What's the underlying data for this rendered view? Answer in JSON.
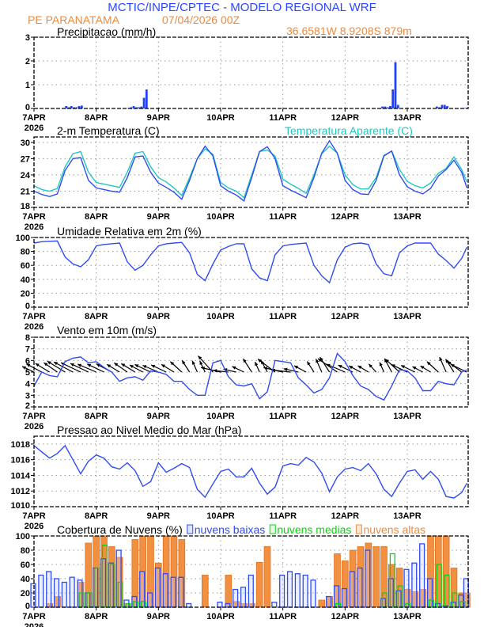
{
  "header": {
    "title": "MCTIC/INPE/CPTEC - MODELO REGIONAL WRF",
    "station": "PE PARANATAMA",
    "datetime": "07/04/2026 00Z",
    "coords": "36.6581W 8.9208S 879m"
  },
  "x_axis": {
    "labels": [
      "7APR",
      "8APR",
      "9APR",
      "10APR",
      "11APR",
      "12APR",
      "13APR"
    ],
    "year": "2026",
    "range": [
      "2026-04-07T00",
      "2026-04-13T23"
    ]
  },
  "times": [
    "2026-04-07T00",
    "2026-04-07T03",
    "2026-04-07T06",
    "2026-04-07T09",
    "2026-04-07T12",
    "2026-04-07T15",
    "2026-04-07T18",
    "2026-04-07T21",
    "2026-04-08T00",
    "2026-04-08T03",
    "2026-04-08T06",
    "2026-04-08T09",
    "2026-04-08T12",
    "2026-04-08T15",
    "2026-04-08T18",
    "2026-04-08T21",
    "2026-04-09T00",
    "2026-04-09T03",
    "2026-04-09T06",
    "2026-04-09T09",
    "2026-04-09T12",
    "2026-04-09T15",
    "2026-04-09T18",
    "2026-04-09T21",
    "2026-04-10T00",
    "2026-04-10T03",
    "2026-04-10T06",
    "2026-04-10T09",
    "2026-04-10T12",
    "2026-04-10T15",
    "2026-04-10T18",
    "2026-04-10T21",
    "2026-04-11T00",
    "2026-04-11T03",
    "2026-04-11T06",
    "2026-04-11T09",
    "2026-04-11T12",
    "2026-04-11T15",
    "2026-04-11T18",
    "2026-04-11T21",
    "2026-04-12T00",
    "2026-04-12T03",
    "2026-04-12T06",
    "2026-04-12T09",
    "2026-04-12T12",
    "2026-04-12T15",
    "2026-04-12T18",
    "2026-04-12T21",
    "2026-04-13T00",
    "2026-04-13T03",
    "2026-04-13T06",
    "2026-04-13T09",
    "2026-04-13T12",
    "2026-04-13T15",
    "2026-04-13T18",
    "2026-04-13T21",
    "2026-04-13T23"
  ],
  "chart_data": [
    {
      "type": "bar",
      "title": "Precipitacao (mm/h)",
      "ylim": [
        0,
        3
      ],
      "yticks": [
        0,
        1,
        2,
        3
      ],
      "grid": true,
      "series": [
        {
          "color": "#2040ff",
          "points": [
            {
              "t": "2026-04-07T12",
              "v": 0.1
            },
            {
              "t": "2026-04-07T13",
              "v": 0.05
            },
            {
              "t": "2026-04-07T14",
              "v": 0.1
            },
            {
              "t": "2026-04-07T15",
              "v": 0.05
            },
            {
              "t": "2026-04-07T16",
              "v": 0.05
            },
            {
              "t": "2026-04-07T17",
              "v": 0.1
            },
            {
              "t": "2026-04-07T18",
              "v": 0.12
            },
            {
              "t": "2026-04-08T12",
              "v": 0.02
            },
            {
              "t": "2026-04-08T13",
              "v": 0.05
            },
            {
              "t": "2026-04-08T14",
              "v": 0.1
            },
            {
              "t": "2026-04-08T15",
              "v": 0.05
            },
            {
              "t": "2026-04-08T16",
              "v": 0.05
            },
            {
              "t": "2026-04-08T17",
              "v": 0.08
            },
            {
              "t": "2026-04-08T18",
              "v": 0.45
            },
            {
              "t": "2026-04-08T19",
              "v": 0.8
            },
            {
              "t": "2026-04-12T14",
              "v": 0.08
            },
            {
              "t": "2026-04-12T15",
              "v": 0.08
            },
            {
              "t": "2026-04-12T16",
              "v": 0.05
            },
            {
              "t": "2026-04-12T17",
              "v": 0.1
            },
            {
              "t": "2026-04-12T18",
              "v": 0.8
            },
            {
              "t": "2026-04-12T19",
              "v": 1.95
            },
            {
              "t": "2026-04-12T20",
              "v": 0.15
            },
            {
              "t": "2026-04-13T11",
              "v": 0.08
            },
            {
              "t": "2026-04-13T12",
              "v": 0.05
            },
            {
              "t": "2026-04-13T13",
              "v": 0.15
            },
            {
              "t": "2026-04-13T14",
              "v": 0.15
            },
            {
              "t": "2026-04-13T15",
              "v": 0.1
            },
            {
              "t": "2026-04-13T22",
              "v": 0.02
            }
          ]
        }
      ]
    },
    {
      "type": "line",
      "title": "2-m Temperatura (C)",
      "ylim": [
        18,
        31
      ],
      "yticks": [
        18,
        21,
        24,
        27,
        30
      ],
      "grid": true,
      "series": [
        {
          "name": "Temperatura Aparente (C)",
          "color": "#20c8c0",
          "values": [
            22.0,
            21.3,
            21.0,
            21.5,
            25.5,
            27.9,
            28.3,
            24.5,
            22.6,
            22.3,
            22.0,
            21.7,
            24.5,
            28.0,
            28.3,
            25.5,
            23.5,
            22.7,
            21.6,
            20.2,
            23.5,
            27.0,
            28.8,
            27.8,
            22.6,
            21.6,
            21.0,
            19.8,
            24.0,
            28.3,
            28.6,
            27.5,
            23.2,
            22.3,
            21.5,
            20.6,
            24.0,
            27.9,
            29.3,
            28.0,
            24.0,
            22.2,
            21.4,
            21.4,
            23.5,
            27.6,
            28.4,
            25.0,
            22.8,
            22.0,
            21.6,
            22.5,
            24.3,
            25.2,
            27.3,
            25.0,
            22.7
          ]
        },
        {
          "color": "#2f4cf0",
          "values": [
            21.0,
            20.4,
            20.0,
            20.5,
            24.8,
            27.0,
            27.2,
            23.0,
            21.6,
            21.3,
            21.0,
            20.8,
            23.5,
            27.3,
            27.5,
            24.5,
            22.5,
            21.7,
            20.8,
            19.5,
            23.0,
            27.0,
            29.3,
            27.5,
            22.0,
            21.0,
            20.3,
            19.2,
            23.5,
            28.3,
            29.2,
            27.0,
            22.0,
            21.2,
            20.5,
            19.8,
            23.5,
            28.0,
            30.3,
            28.0,
            23.0,
            21.3,
            20.5,
            20.4,
            23.0,
            27.5,
            28.4,
            24.0,
            21.8,
            21.0,
            20.5,
            21.5,
            23.8,
            25.0,
            26.7,
            24.5,
            21.6
          ]
        }
      ]
    },
    {
      "type": "line",
      "title": "Umidade Relativa em 2m (%)",
      "ylim": [
        0,
        100
      ],
      "yticks": [
        0,
        20,
        40,
        60,
        80,
        100
      ],
      "grid": true,
      "series": [
        {
          "color": "#2f4cf0",
          "values": [
            92,
            94,
            94.5,
            95,
            72,
            62,
            58,
            68,
            88,
            90,
            91,
            92,
            65,
            53,
            60,
            75,
            88,
            91,
            92,
            93,
            78,
            47,
            38,
            62,
            82,
            87,
            91,
            91,
            55,
            42,
            38,
            75,
            88,
            90,
            91,
            92,
            60,
            45,
            35,
            68,
            86,
            91,
            92,
            90,
            62,
            48,
            45,
            78,
            88,
            92,
            92,
            92,
            76,
            67,
            56,
            70,
            86
          ]
        }
      ]
    },
    {
      "type": "line",
      "title": "Vento em 10m (m/s)",
      "ylim": [
        2,
        8
      ],
      "yticks": [
        2,
        3,
        4,
        5,
        6,
        7,
        8
      ],
      "grid": true,
      "series": [
        {
          "color": "#2f4cf0",
          "values": [
            3.8,
            5.0,
            4.7,
            4.6,
            5.9,
            6.2,
            6.3,
            5.8,
            5.9,
            5.4,
            5.0,
            4.2,
            4.5,
            4.6,
            4.3,
            5.1,
            5.0,
            4.8,
            4.2,
            4.2,
            3.5,
            3.0,
            3.0,
            5.8,
            6.0,
            4.6,
            3.9,
            3.8,
            4.0,
            2.7,
            3.3,
            6.0,
            5.9,
            5.8,
            4.5,
            3.9,
            3.2,
            3.5,
            4.5,
            6.6,
            5.9,
            4.7,
            3.8,
            3.5,
            2.9,
            2.6,
            3.8,
            5.2,
            5.1,
            4.5,
            3.4,
            3.4,
            4.2,
            4.0,
            3.9,
            5.0,
            5.2
          ]
        }
      ],
      "vectors": {
        "baseline": 5,
        "color": "#000000",
        "direction_deg": [
          110,
          112,
          115,
          118,
          115,
          112,
          110,
          110,
          108,
          110,
          112,
          115,
          118,
          115,
          112,
          110,
          108,
          110,
          115,
          125,
          140,
          150,
          148,
          130,
          100,
          95,
          100,
          110,
          140,
          150,
          145,
          120,
          100,
          95,
          100,
          112,
          140,
          150,
          140,
          118,
          108,
          110,
          112,
          115,
          130,
          150,
          145,
          125,
          110,
          110,
          112,
          115,
          125,
          150,
          140,
          120,
          110
        ]
      }
    },
    {
      "type": "line",
      "title": "Pressao ao Nivel Medio do Mar (hPa)",
      "ylim": [
        1010,
        1019
      ],
      "yticks": [
        1010,
        1012,
        1014,
        1016,
        1018
      ],
      "grid": true,
      "series": [
        {
          "color": "#2f4cf0",
          "values": [
            1017.8,
            1017.0,
            1016.2,
            1016.8,
            1017.8,
            1016.0,
            1014.2,
            1015.8,
            1016.6,
            1016.2,
            1015.1,
            1014.8,
            1015.6,
            1014.6,
            1012.6,
            1013.2,
            1015.6,
            1014.4,
            1014.9,
            1015.5,
            1015.0,
            1012.2,
            1011.2,
            1012.9,
            1014.5,
            1014.8,
            1013.8,
            1013.8,
            1014.9,
            1013.0,
            1011.6,
            1012.5,
            1015.2,
            1015.5,
            1015.3,
            1016.3,
            1015.7,
            1014.3,
            1011.9,
            1013.8,
            1014.8,
            1015.0,
            1014.6,
            1015.5,
            1014.2,
            1012.2,
            1011.3,
            1013.0,
            1014.5,
            1014.7,
            1013.5,
            1014.5,
            1013.5,
            1011.3,
            1011.1,
            1011.8,
            1013.0
          ]
        }
      ]
    },
    {
      "type": "bar",
      "title": "Cobertura de Nuvens (%)",
      "ylim": [
        0,
        100
      ],
      "yticks": [
        0,
        20,
        40,
        60,
        80,
        100
      ],
      "grid": true,
      "series": [
        {
          "name": "nuvens altas",
          "color": "#f09040",
          "values": [
            0,
            0,
            5,
            15,
            0,
            0,
            35,
            90,
            100,
            100,
            85,
            70,
            5,
            95,
            100,
            100,
            62,
            100,
            100,
            95,
            0,
            0,
            45,
            0,
            0,
            45,
            8,
            5,
            5,
            63,
            85,
            0,
            0,
            0,
            0,
            0,
            0,
            10,
            15,
            75,
            65,
            80,
            85,
            90,
            85,
            85,
            60,
            55,
            25,
            22,
            25,
            100,
            100,
            100,
            55,
            20,
            20
          ]
        },
        {
          "name": "nuvens baixas",
          "color": "#2f4cf0",
          "values": [
            33,
            45,
            50,
            40,
            35,
            42,
            38,
            20,
            55,
            68,
            62,
            80,
            10,
            15,
            50,
            20,
            55,
            47,
            42,
            42,
            5,
            0,
            0,
            0,
            7,
            5,
            25,
            28,
            45,
            0,
            0,
            7,
            45,
            50,
            47,
            45,
            38,
            0,
            15,
            30,
            26,
            50,
            55,
            80,
            0,
            12,
            40,
            23,
            53,
            62,
            89,
            40,
            5,
            2,
            7,
            17,
            40
          ]
        },
        {
          "name": "nuvens medias",
          "color": "#10d010",
          "values": [
            0,
            0,
            0,
            0,
            0,
            0,
            20,
            20,
            55,
            87,
            60,
            35,
            5,
            8,
            8,
            0,
            0,
            0,
            0,
            0,
            0,
            0,
            0,
            0,
            0,
            0,
            0,
            0,
            0,
            0,
            0,
            0,
            0,
            0,
            0,
            0,
            0,
            0,
            0,
            5,
            0,
            0,
            0,
            0,
            0,
            20,
            75,
            30,
            5,
            0,
            0,
            10,
            60,
            45,
            20,
            8,
            0
          ]
        }
      ]
    }
  ]
}
